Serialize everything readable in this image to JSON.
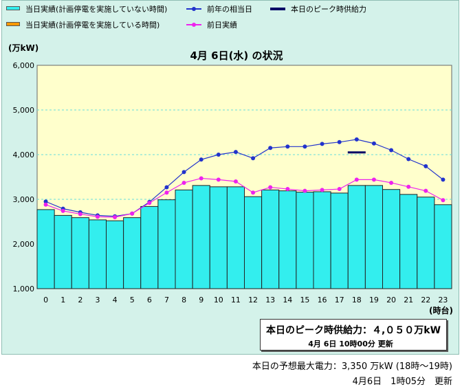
{
  "legend": {
    "actual_no_plan": "当日実績(計画停電を実施していない時間)",
    "actual_plan": "当日実績(計画停電を実施している時間)",
    "last_year": "前年の相当日",
    "prev_day": "前日実績",
    "peak_supply": "本日のピーク時供給力"
  },
  "colors": {
    "bar_fill": "#33eeee",
    "bar_plan": "#ff9900",
    "last_year_line": "#2233cc",
    "prev_day_line": "#ee22ee",
    "peak_line": "#000066",
    "plot_bg": "#ffffcc",
    "panel_bg": "#d4f2ea"
  },
  "chart_data": {
    "type": "bar",
    "title": "4月 6日(水) の状況",
    "ylabel": "(万kW)",
    "xlabel": "(時台)",
    "ylim": [
      1000,
      6000
    ],
    "yticks": [
      "1,000",
      "2,000",
      "3,000",
      "4,000",
      "5,000",
      "6,000"
    ],
    "categories": [
      "0",
      "1",
      "2",
      "3",
      "4",
      "5",
      "6",
      "7",
      "8",
      "9",
      "10",
      "11",
      "12",
      "13",
      "14",
      "15",
      "16",
      "17",
      "18",
      "19",
      "20",
      "21",
      "22",
      "23"
    ],
    "series": [
      {
        "name": "当日実績(計画停電を実施していない時間)",
        "type": "bar",
        "values": [
          2770,
          2640,
          2590,
          2540,
          2520,
          2590,
          2840,
          2990,
          3210,
          3310,
          3280,
          3280,
          3060,
          3210,
          3190,
          3160,
          3170,
          3140,
          3310,
          3310,
          3220,
          3110,
          3050,
          2880
        ]
      },
      {
        "name": "前年の相当日",
        "type": "line",
        "values": [
          2950,
          2790,
          2710,
          2640,
          2620,
          2680,
          2940,
          3270,
          3610,
          3890,
          4000,
          4060,
          3920,
          4150,
          4180,
          4180,
          4240,
          4280,
          4340,
          4250,
          4100,
          3900,
          3740,
          3440
        ]
      },
      {
        "name": "前日実績",
        "type": "line",
        "values": [
          2880,
          2740,
          2670,
          2610,
          2600,
          2680,
          2920,
          3150,
          3370,
          3470,
          3440,
          3400,
          3150,
          3270,
          3230,
          3190,
          3210,
          3230,
          3440,
          3440,
          3370,
          3280,
          3190,
          2980
        ]
      }
    ],
    "peak_supply": {
      "value": 4050,
      "hour": 18
    },
    "grid": true,
    "legend_position": "top"
  },
  "peak_box": {
    "line1": "本日のピーク時供給力：４,０５０万kW",
    "line2": "4月 6日 10時00分 更新"
  },
  "footer": {
    "forecast": "本日の予想最大電力：3,350 万kW (18時～19時)",
    "updated": "4月6日　1時05分　更新"
  }
}
